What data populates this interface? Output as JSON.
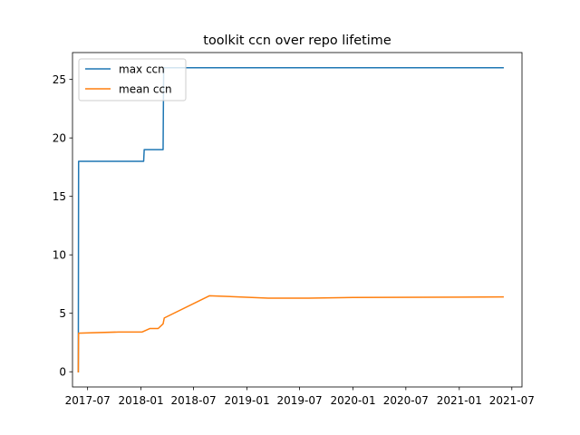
{
  "chart_data": {
    "type": "line",
    "title": "toolkit ccn over repo lifetime",
    "xlabel": "",
    "ylabel": "",
    "x_axis_type": "date",
    "xlim": [
      "2017-05-10",
      "2021-08-05"
    ],
    "ylim": [
      -1.3,
      27.3
    ],
    "x_ticks": [
      {
        "date": "2017-07-01",
        "label": "2017-07"
      },
      {
        "date": "2018-01-01",
        "label": "2018-01"
      },
      {
        "date": "2018-07-01",
        "label": "2018-07"
      },
      {
        "date": "2019-01-01",
        "label": "2019-01"
      },
      {
        "date": "2019-07-01",
        "label": "2019-07"
      },
      {
        "date": "2020-01-01",
        "label": "2020-01"
      },
      {
        "date": "2020-07-01",
        "label": "2020-07"
      },
      {
        "date": "2021-01-01",
        "label": "2021-01"
      },
      {
        "date": "2021-07-01",
        "label": "2021-07"
      }
    ],
    "y_ticks": [
      0,
      5,
      10,
      15,
      20,
      25
    ],
    "grid": false,
    "legend_position": "top-left",
    "series": [
      {
        "name": "max ccn",
        "color": "#1f77b4",
        "points": [
          {
            "x": "2017-05-30",
            "y": 0
          },
          {
            "x": "2017-05-31",
            "y": 18
          },
          {
            "x": "2018-01-10",
            "y": 18
          },
          {
            "x": "2018-01-12",
            "y": 19
          },
          {
            "x": "2018-03-18",
            "y": 19
          },
          {
            "x": "2018-03-20",
            "y": 26
          },
          {
            "x": "2021-06-01",
            "y": 26
          }
        ]
      },
      {
        "name": "mean ccn",
        "color": "#ff7f0e",
        "points": [
          {
            "x": "2017-05-30",
            "y": 0
          },
          {
            "x": "2017-05-31",
            "y": 3.3
          },
          {
            "x": "2017-10-15",
            "y": 3.4
          },
          {
            "x": "2018-01-05",
            "y": 3.4
          },
          {
            "x": "2018-02-01",
            "y": 3.7
          },
          {
            "x": "2018-03-01",
            "y": 3.7
          },
          {
            "x": "2018-03-18",
            "y": 4.1
          },
          {
            "x": "2018-03-22",
            "y": 4.6
          },
          {
            "x": "2018-08-25",
            "y": 6.5
          },
          {
            "x": "2019-03-15",
            "y": 6.3
          },
          {
            "x": "2019-08-01",
            "y": 6.3
          },
          {
            "x": "2020-01-01",
            "y": 6.35
          },
          {
            "x": "2021-06-01",
            "y": 6.4
          }
        ]
      }
    ]
  }
}
